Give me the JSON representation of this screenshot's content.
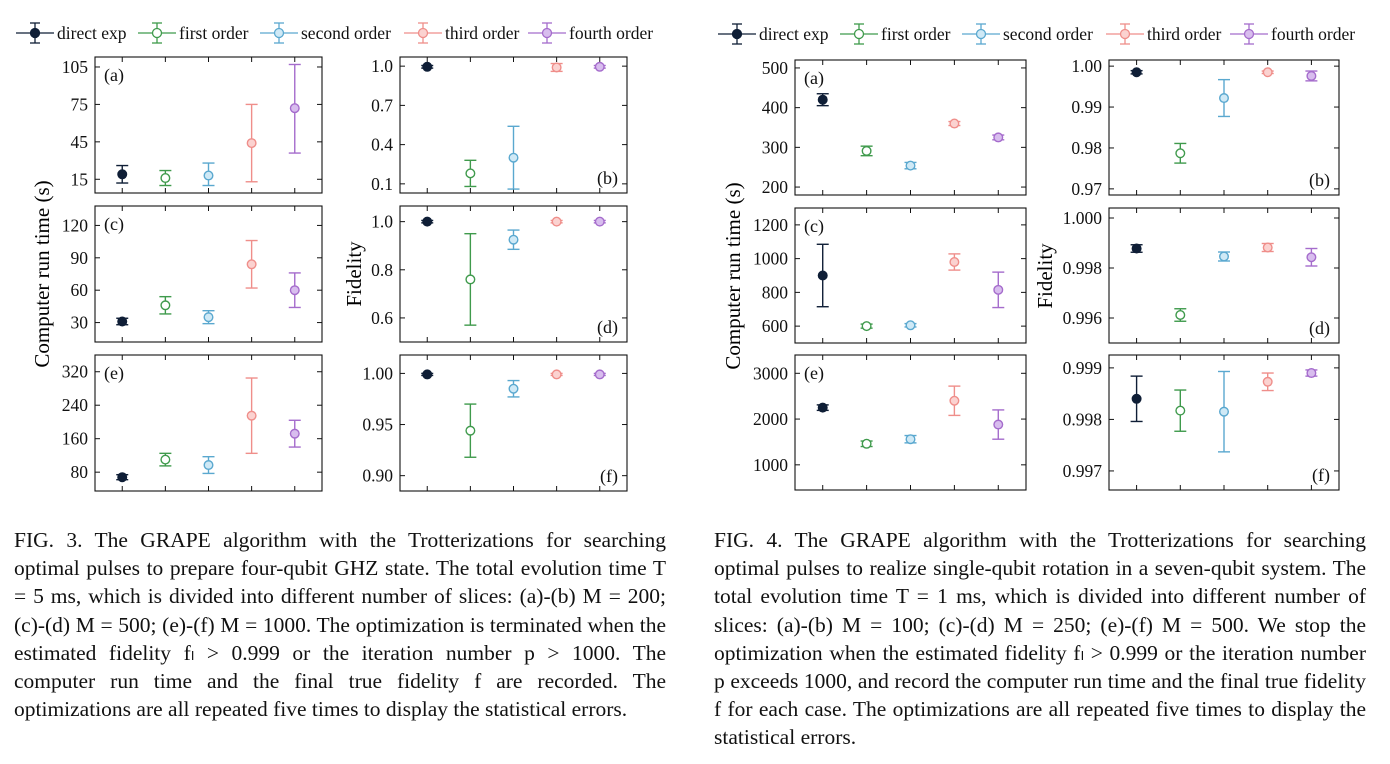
{
  "legend": [
    {
      "label": "direct exp",
      "color": "#0f1e36",
      "fill": "#0f1e36"
    },
    {
      "label": "first order",
      "color": "#3f9a4c",
      "fill": "#ffffff"
    },
    {
      "label": "second order",
      "color": "#5aa8cf",
      "fill": "#cfe9f6"
    },
    {
      "label": "third order",
      "color": "#ef8e8a",
      "fill": "#fbd2d0"
    },
    {
      "label": "fourth order",
      "color": "#a56ccc",
      "fill": "#d8bdee"
    }
  ],
  "fig3": {
    "caption": "FIG. 3. The GRAPE algorithm with the Trotterizations for searching optimal pulses to prepare four-qubit GHZ state. The total evolution time T = 5 ms, which is divided into different number of slices: (a)-(b) M = 200; (c)-(d) M = 500; (e)-(f) M = 1000. The optimization is terminated when the estimated fidelity fₗ > 0.999 or the iteration number p > 1000. The computer run time and the final true fidelity f are recorded. The optimizations are all repeated five times to display the statistical errors.",
    "ylabel_left": "Computer run time (s)",
    "ylabel_right": "Fidelity"
  },
  "fig4": {
    "caption": "FIG. 4. The GRAPE algorithm with the Trotterizations for searching optimal pulses to realize single-qubit rotation in a seven-qubit system. The total evolution time T = 1 ms, which is divided into different number of slices: (a)-(b) M = 100; (c)-(d) M = 250; (e)-(f) M = 500. We stop the optimization when the estimated fidelity fₗ > 0.999 or the iteration number p exceeds 1000, and record the computer run time and the final true fidelity f for each case. The optimizations are all repeated five times to display the statistical errors.",
    "ylabel_left": "Computer run time (s)",
    "ylabel_right": "Fidelity"
  },
  "chart_data": [
    {
      "type": "scatter",
      "figure": "FIG. 3",
      "panel": "(a)",
      "x": [
        1,
        2,
        3,
        4,
        5
      ],
      "ylim": [
        4,
        113
      ],
      "yticks": [
        "15",
        "45",
        "75",
        "105"
      ],
      "series": [
        {
          "name": "direct exp",
          "values": [
            19,
            16,
            18,
            44,
            72
          ],
          "err_low": [
            7,
            6,
            8,
            31,
            36
          ],
          "err_high": [
            7,
            6,
            10,
            31,
            35
          ]
        }
      ]
    },
    {
      "type": "scatter",
      "figure": "FIG. 3",
      "panel": "(b)",
      "x": [
        1,
        2,
        3,
        4,
        5
      ],
      "ylim": [
        0.03,
        1.07
      ],
      "yticks": [
        "0.1",
        "0.4",
        "0.7",
        "1.0"
      ],
      "values": [
        0.995,
        0.18,
        0.3,
        0.99,
        0.995
      ],
      "err": [
        0.01,
        0.1,
        0.24,
        0.03,
        0.01
      ]
    },
    {
      "type": "scatter",
      "figure": "FIG. 3",
      "panel": "(c)",
      "x": [
        1,
        2,
        3,
        4,
        5
      ],
      "ylim": [
        12,
        138
      ],
      "yticks": [
        "30",
        "60",
        "90",
        "120"
      ],
      "values": [
        31,
        46,
        35,
        84,
        60
      ],
      "err": [
        3,
        8,
        6,
        22,
        16
      ]
    },
    {
      "type": "scatter",
      "figure": "FIG. 3",
      "panel": "(d)",
      "x": [
        1,
        2,
        3,
        4,
        5
      ],
      "ylim": [
        0.5,
        1.065
      ],
      "yticks": [
        "0.6",
        "0.8",
        "1.0"
      ],
      "values": [
        1.0,
        0.76,
        0.925,
        1.0,
        1.0
      ],
      "err": [
        0.005,
        0.19,
        0.04,
        0.005,
        0.005
      ]
    },
    {
      "type": "scatter",
      "figure": "FIG. 3",
      "panel": "(e)",
      "x": [
        1,
        2,
        3,
        4,
        5
      ],
      "ylim": [
        35,
        360
      ],
      "yticks": [
        "80",
        "160",
        "240",
        "320"
      ],
      "values": [
        68,
        110,
        97,
        215,
        172
      ],
      "err": [
        6,
        15,
        20,
        90,
        32
      ]
    },
    {
      "type": "scatter",
      "figure": "FIG. 3",
      "panel": "(f)",
      "x": [
        1,
        2,
        3,
        4,
        5
      ],
      "ylim": [
        0.885,
        1.018
      ],
      "yticks": [
        "0.90",
        "0.95",
        "1.00"
      ],
      "values": [
        0.999,
        0.944,
        0.985,
        0.999,
        0.999
      ],
      "err": [
        0.001,
        0.026,
        0.008,
        0.001,
        0.001
      ]
    },
    {
      "type": "scatter",
      "figure": "FIG. 4",
      "panel": "(a)",
      "x": [
        1,
        2,
        3,
        4,
        5
      ],
      "ylim": [
        180,
        520
      ],
      "yticks": [
        "200",
        "300",
        "400",
        "500"
      ],
      "values": [
        420,
        291,
        254,
        360,
        325
      ],
      "err": [
        15,
        12,
        8,
        5,
        6
      ]
    },
    {
      "type": "scatter",
      "figure": "FIG. 4",
      "panel": "(b)",
      "x": [
        1,
        2,
        3,
        4,
        5
      ],
      "ylim": [
        0.9685,
        1.0015
      ],
      "yticks": [
        "0.97",
        "0.98",
        "0.99",
        "1.00"
      ],
      "values": [
        0.9985,
        0.9787,
        0.9922,
        0.9985,
        0.9976
      ],
      "err": [
        0.0004,
        0.0024,
        0.0045,
        0.0003,
        0.0012
      ]
    },
    {
      "type": "scatter",
      "figure": "FIG. 4",
      "panel": "(c)",
      "x": [
        1,
        2,
        3,
        4,
        5
      ],
      "ylim": [
        500,
        1300
      ],
      "yticks": [
        "600",
        "800",
        "1000",
        "1200"
      ],
      "values": [
        900,
        600,
        605,
        980,
        815
      ],
      "err": [
        185,
        12,
        10,
        48,
        105
      ]
    },
    {
      "type": "scatter",
      "figure": "FIG. 4",
      "panel": "(d)",
      "x": [
        1,
        2,
        3,
        4,
        5
      ],
      "ylim": [
        0.995,
        1.0004
      ],
      "yticks": [
        "0.996",
        "0.998",
        "1.000"
      ],
      "values": [
        0.99878,
        0.99612,
        0.99846,
        0.99882,
        0.99843
      ],
      "err": [
        0.00015,
        0.00025,
        0.00018,
        0.00016,
        0.00035
      ]
    },
    {
      "type": "scatter",
      "figure": "FIG. 4",
      "panel": "(e)",
      "x": [
        1,
        2,
        3,
        4,
        5
      ],
      "ylim": [
        450,
        3400
      ],
      "yticks": [
        "1000",
        "2000",
        "3000"
      ],
      "values": [
        2250,
        1460,
        1560,
        2400,
        1880
      ],
      "err": [
        60,
        60,
        80,
        320,
        320
      ]
    },
    {
      "type": "scatter",
      "figure": "FIG. 4",
      "panel": "(f)",
      "x": [
        1,
        2,
        3,
        4,
        5
      ],
      "ylim": [
        0.99663,
        0.99925
      ],
      "yticks": [
        "0.997",
        "0.998",
        "0.999"
      ],
      "values": [
        0.9984,
        0.99817,
        0.99815,
        0.99873,
        0.9989
      ],
      "err": [
        0.00044,
        0.0004,
        0.00078,
        0.00017,
        6e-05
      ]
    }
  ]
}
